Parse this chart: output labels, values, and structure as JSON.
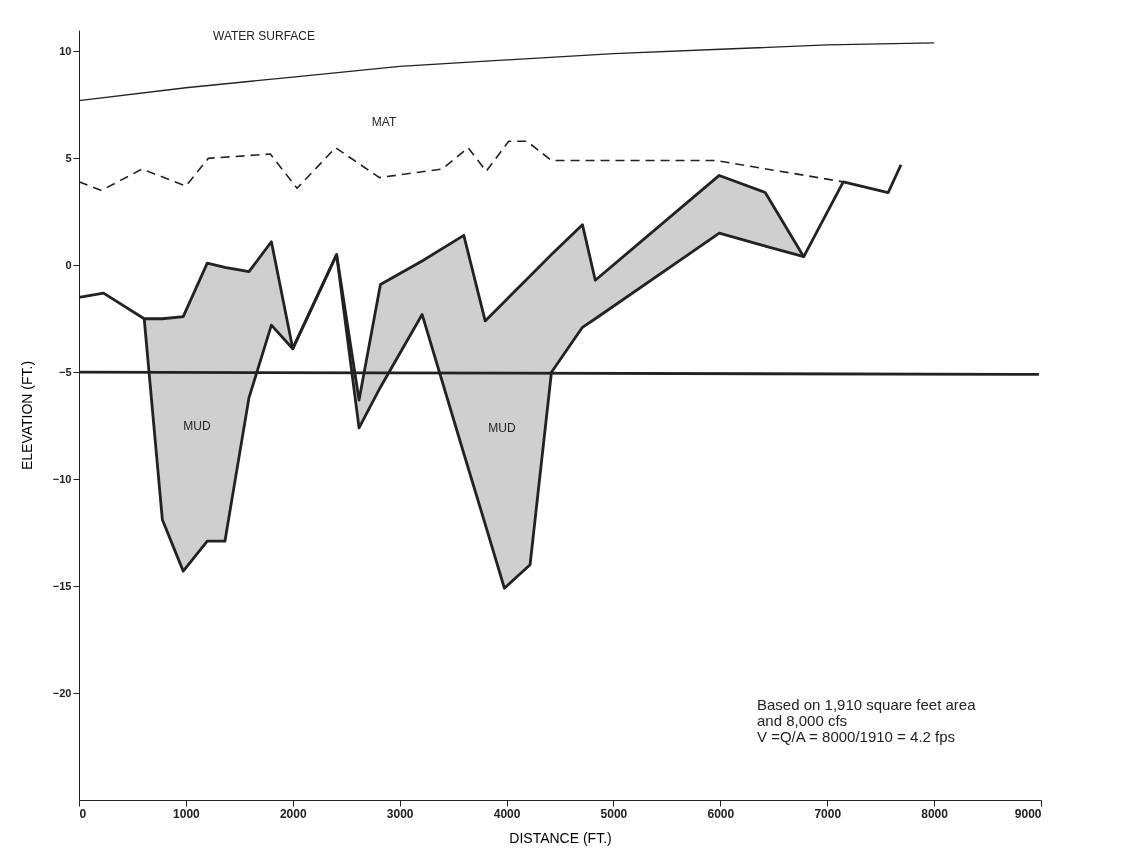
{
  "chart_data": {
    "type": "line",
    "xlabel": "DISTANCE (FT.)",
    "ylabel": "ELEVATION (FT.)",
    "xlim": [
      0,
      9000
    ],
    "xticks": [
      0,
      1000,
      2000,
      3000,
      4000,
      5000,
      6000,
      7000,
      8000,
      9000
    ],
    "ylim": [
      -25,
      11
    ],
    "yticks": [
      -20,
      -15,
      -10,
      -5,
      0,
      5,
      10
    ],
    "grid": false,
    "series": [
      {
        "color": "#222222",
        "line_style": "solid",
        "x": [
          0,
          1000,
          2000,
          3000,
          4000,
          5000,
          6000,
          7000,
          8000
        ],
        "values": [
          7.7,
          8.3,
          8.8,
          9.3,
          9.6,
          9.9,
          10.1,
          10.3,
          10.4
        ]
      },
      {
        "color": "#222222",
        "line_style": "dashed",
        "x": [
          0,
          210,
          590,
          1000,
          1210,
          1790,
          2040,
          2400,
          2810,
          3400,
          3640,
          3810,
          4020,
          4190,
          4420,
          5960,
          7150
        ],
        "values": [
          3.9,
          3.5,
          4.5,
          3.7,
          5.0,
          5.2,
          3.6,
          5.5,
          4.1,
          4.5,
          5.5,
          4.4,
          5.8,
          5.8,
          4.9,
          4.9,
          3.9
        ]
      },
      {
        "color": "#222222",
        "line_style": "solid",
        "x": [
          0,
          230,
          610,
          780,
          975,
          1200,
          1365,
          1590,
          1800,
          2000,
          2410,
          2620,
          2820,
          3210,
          3600,
          3800,
          3980,
          4220,
          4420,
          4710,
          4830,
          5990,
          6420,
          6780,
          7150,
          7570,
          7690
        ],
        "values": [
          -1.5,
          -1.3,
          -2.5,
          -2.5,
          -2.4,
          0.1,
          -0.1,
          -0.3,
          1.1,
          -3.9,
          0.5,
          -6.3,
          -0.9,
          0.2,
          1.4,
          -2.6,
          -1.7,
          -0.5,
          0.5,
          1.9,
          -0.7,
          4.2,
          3.4,
          0.4,
          3.9,
          3.4,
          4.7
        ]
      },
      {
        "color": "#222222",
        "line_style": "solid",
        "x": [
          610,
          780,
          975,
          1200,
          1365,
          1590,
          1800,
          2000,
          2410,
          2620,
          2820,
          3210,
          3600,
          3800,
          3980,
          4220,
          4420,
          4710,
          4830,
          5990,
          6420,
          6780
        ],
        "values": [
          -2.5,
          -11.9,
          -14.3,
          -12.9,
          -12.9,
          -6.2,
          -2.8,
          -3.9,
          0.5,
          -7.6,
          -5.7,
          -2.3,
          -8.8,
          -12.1,
          -15.1,
          -14.0,
          -5.0,
          -2.9,
          -2.5,
          1.5,
          0.9,
          0.4
        ],
        "lower": [
          -2.5,
          -11.9,
          -14.3,
          -12.9,
          -12.9,
          -6.2,
          -2.8,
          -3.9,
          0.5,
          -7.6,
          -5.7,
          -2.3,
          -8.8,
          -12.1,
          -15.1,
          -14.0,
          -5.0,
          -2.9,
          -2.5,
          1.5,
          0.9,
          0.4
        ],
        "upper": [
          -2.5,
          -2.5,
          -2.4,
          0.1,
          -0.1,
          -0.3,
          1.1,
          -3.9,
          0.5,
          -6.3,
          -0.9,
          0.2,
          1.4,
          -2.6,
          -1.7,
          -0.5,
          0.5,
          1.9,
          -0.7,
          4.2,
          3.4,
          0.4
        ]
      },
      {
        "color": "#222222",
        "line_style": "solid",
        "x": [
          0,
          8980
        ],
        "values": [
          -5.0,
          -5.1
        ]
      }
    ],
    "annotations": [
      "WATER SURFACE",
      "MAT",
      "MUD",
      "MUD",
      "Based on 1,910 square feet area\nand 8,000 cfs\nV =Q/A = 8000/1910 = 4.2 fps"
    ]
  }
}
